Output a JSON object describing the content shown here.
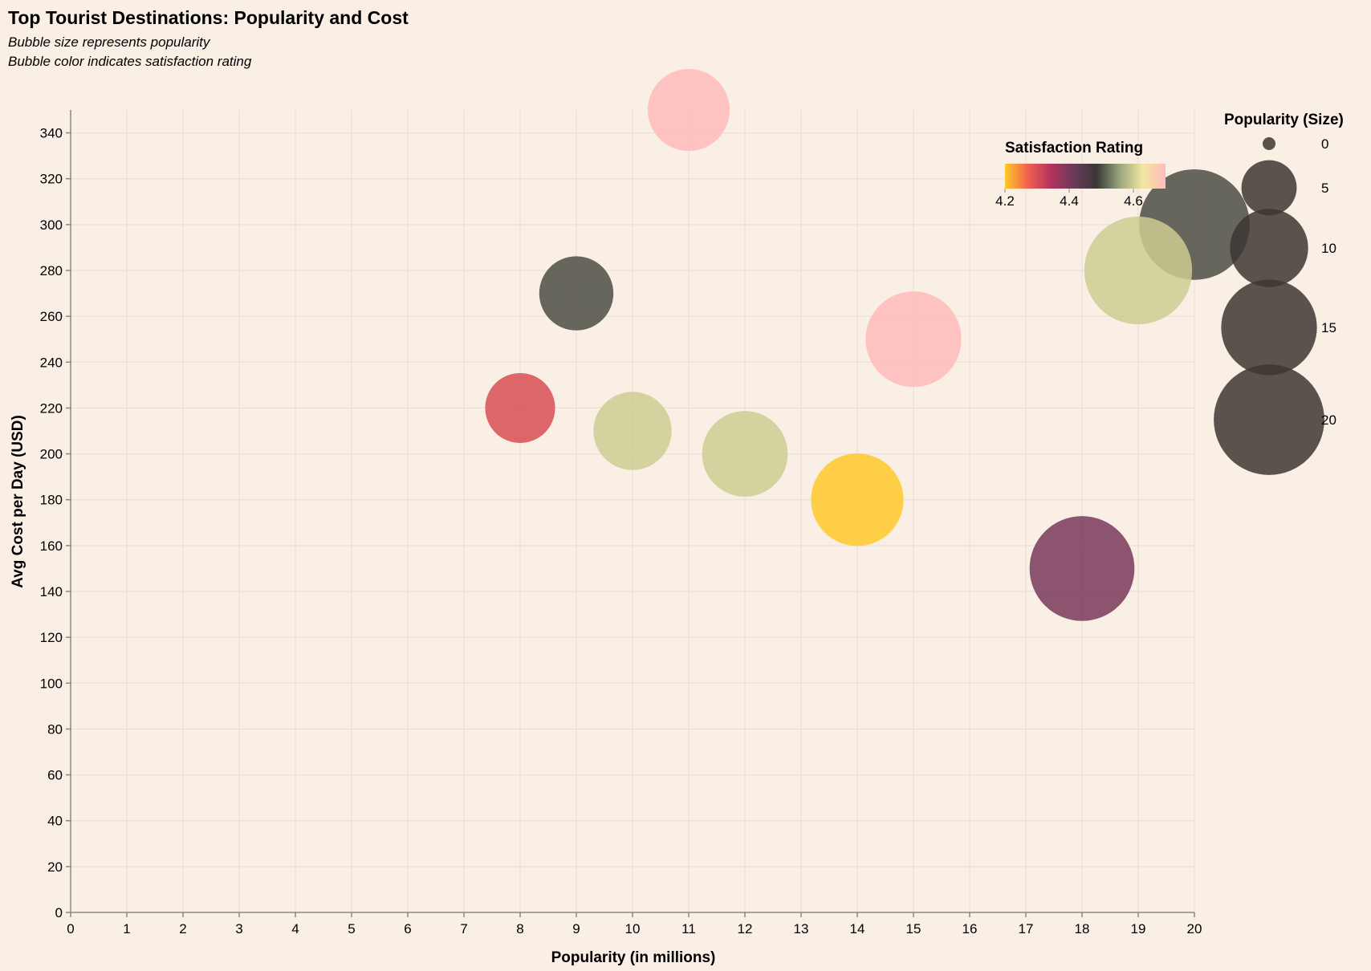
{
  "chart_data": {
    "type": "scatter",
    "title": "Top Tourist Destinations: Popularity and Cost",
    "subtitle": [
      "Bubble size represents popularity",
      "Bubble color indicates satisfaction rating"
    ],
    "xlabel": "Popularity (in millions)",
    "ylabel": "Avg Cost per Day (USD)",
    "xlim": [
      0,
      20
    ],
    "ylim": [
      0,
      350
    ],
    "x_ticks": [
      0,
      1,
      2,
      3,
      4,
      5,
      6,
      7,
      8,
      9,
      10,
      11,
      12,
      13,
      14,
      15,
      16,
      17,
      18,
      19,
      20
    ],
    "y_ticks": [
      0,
      20,
      40,
      60,
      80,
      100,
      120,
      140,
      160,
      180,
      200,
      220,
      240,
      260,
      280,
      300,
      320,
      340
    ],
    "grid": true,
    "points": [
      {
        "x": 11,
        "y": 350,
        "rating": 4.7
      },
      {
        "x": 20,
        "y": 300,
        "rating": 4.5
      },
      {
        "x": 19,
        "y": 280,
        "rating": 4.6
      },
      {
        "x": 9,
        "y": 270,
        "rating": 4.5
      },
      {
        "x": 15,
        "y": 250,
        "rating": 4.7
      },
      {
        "x": 8,
        "y": 220,
        "rating": 4.3
      },
      {
        "x": 10,
        "y": 210,
        "rating": 4.6
      },
      {
        "x": 12,
        "y": 200,
        "rating": 4.6
      },
      {
        "x": 14,
        "y": 180,
        "rating": 4.2
      },
      {
        "x": 18,
        "y": 150,
        "rating": 4.4
      }
    ],
    "color_legend": {
      "title": "Satisfaction Rating",
      "domain": [
        4.2,
        4.7
      ],
      "tick_labels": [
        "4.2",
        "4.4",
        "4.6"
      ],
      "tick_values": [
        4.2,
        4.4,
        4.6
      ],
      "colors": [
        "#ffc92a",
        "#f0614f",
        "#b3325e",
        "#6a3a5a",
        "#3a3836",
        "#99a57e",
        "#f2e7a0",
        "#ffbbbb"
      ]
    },
    "size_legend": {
      "title": "Popularity (Size)",
      "values": [
        0,
        5,
        10,
        15,
        20
      ],
      "labels": [
        "0",
        "5",
        "10",
        "15",
        "20"
      ],
      "color": "#3d3633"
    },
    "placement": {
      "color_legend": "top-right",
      "size_legend": "right"
    }
  }
}
